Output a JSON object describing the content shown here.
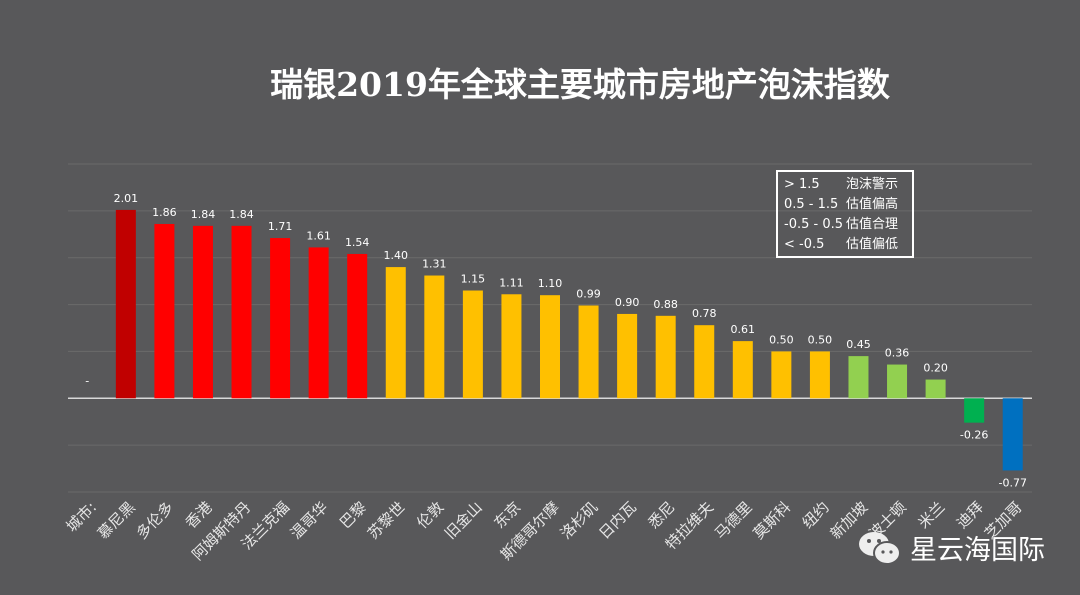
{
  "chart_data": {
    "type": "bar",
    "title": "瑞银2019年全球主要城市房地产泡沫指数",
    "categories": [
      "城市:",
      "慕尼黑",
      "多伦多",
      "香港",
      "阿姆斯特丹",
      "法兰克福",
      "温哥华",
      "巴黎",
      "苏黎世",
      "伦敦",
      "旧金山",
      "东京",
      "斯德哥尔摩",
      "洛杉矶",
      "日内瓦",
      "悉尼",
      "特拉维夫",
      "马德里",
      "莫斯科",
      "纽约",
      "新加坡",
      "波士顿",
      "米兰",
      "迪拜",
      "芝加哥"
    ],
    "values": [
      null,
      2.01,
      1.86,
      1.84,
      1.84,
      1.71,
      1.61,
      1.54,
      1.4,
      1.31,
      1.15,
      1.11,
      1.1,
      0.99,
      0.9,
      0.88,
      0.78,
      0.61,
      0.5,
      0.5,
      0.45,
      0.36,
      0.2,
      -0.26,
      -0.77
    ],
    "value_labels": [
      "-",
      "2.01",
      "1.86",
      "1.84",
      "1.84",
      "1.71",
      "1.61",
      "1.54",
      "1.40",
      "1.31",
      "1.15",
      "1.11",
      "1.10",
      "0.99",
      "0.90",
      "0.88",
      "0.78",
      "0.61",
      "0.50",
      "0.50",
      "0.45",
      "0.36",
      "0.20",
      "-0.26",
      "-0.77"
    ],
    "ylim": [
      -1,
      2.5
    ],
    "grid": true,
    "colors": {
      "peak": "#c00000",
      "bubble": "#ff0000",
      "overvalued": "#ffc000",
      "fair_high": "#92d050",
      "fair_low": "#00b050",
      "undervalued": "#0070c0"
    },
    "legend": {
      "placement": "top-right",
      "entries": [
        {
          "range": "> 1.5",
          "label": "泡沫警示"
        },
        {
          "range": "0.5 - 1.5",
          "label": "估值偏高"
        },
        {
          "range": "-0.5 - 0.5",
          "label": "估值合理"
        },
        {
          "range": "< -0.5",
          "label": "估值偏低"
        }
      ]
    }
  },
  "watermark": {
    "text": "星云海国际",
    "icon": "wechat-icon"
  }
}
